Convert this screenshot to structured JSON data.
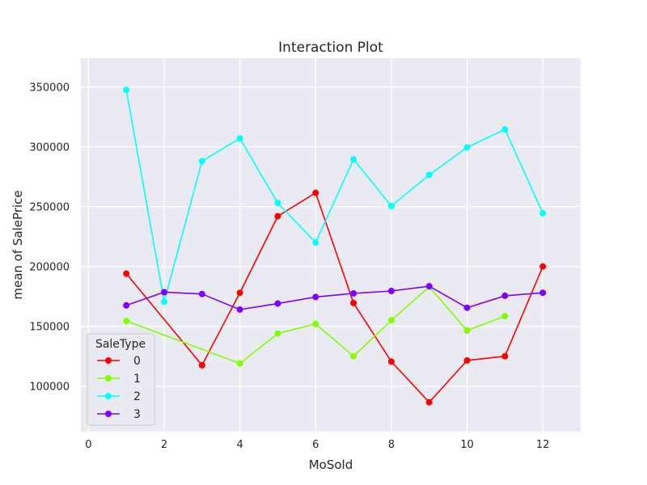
{
  "chart_data": {
    "type": "line",
    "title": "Interaction Plot",
    "xlabel": "MoSold",
    "ylabel": "mean of SalePrice",
    "xlim": [
      -0.2,
      13
    ],
    "ylim": [
      62000,
      374000
    ],
    "xticks": [
      0,
      2,
      4,
      6,
      8,
      10,
      12
    ],
    "yticks": [
      100000,
      150000,
      200000,
      250000,
      300000,
      350000
    ],
    "grid": true,
    "legend": {
      "title": "SaleType",
      "position": "lower-left"
    },
    "series": [
      {
        "name": "0",
        "color": "#ff0000",
        "x": [
          1,
          3,
          4,
          5,
          6,
          7,
          8,
          9,
          10,
          11,
          12
        ],
        "y": [
          194000,
          117500,
          178000,
          242000,
          261500,
          169500,
          120500,
          86500,
          121500,
          125000,
          200000
        ]
      },
      {
        "name": "1",
        "color": "#80ff00",
        "x": [
          1,
          4,
          5,
          6,
          7,
          8,
          9,
          10,
          11
        ],
        "y": [
          154500,
          119000,
          144000,
          152000,
          125000,
          155000,
          183000,
          146500,
          158500
        ]
      },
      {
        "name": "2",
        "color": "#00ffff",
        "x": [
          1,
          2,
          3,
          4,
          5,
          6,
          7,
          8,
          9,
          10,
          11,
          12
        ],
        "y": [
          347500,
          170500,
          288000,
          307000,
          253000,
          220000,
          289500,
          250500,
          276500,
          299500,
          314500,
          244500
        ]
      },
      {
        "name": "3",
        "color": "#8000ff",
        "x": [
          1,
          2,
          3,
          4,
          5,
          6,
          7,
          8,
          9,
          10,
          11,
          12
        ],
        "y": [
          167500,
          178500,
          177000,
          164000,
          169000,
          174500,
          177500,
          179500,
          183500,
          165500,
          175500,
          178000
        ]
      }
    ]
  }
}
